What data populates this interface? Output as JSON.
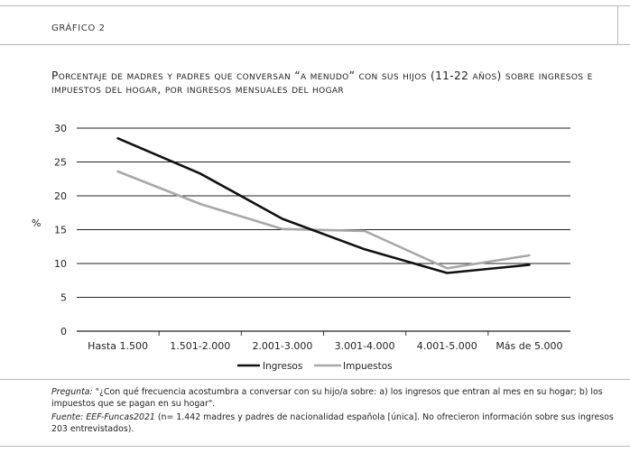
{
  "figure_label": "GRÁFICO 2",
  "title": "Porcentaje de madres y padres que conversan “a menudo” con sus hijos (11-22 años) sobre ingresos e impuestos del hogar, por ingresos mensuales del hogar",
  "chart_data": {
    "type": "line",
    "title": "Porcentaje de madres y padres que conversan “a menudo” con sus hijos (11-22 años) sobre ingresos e impuestos del hogar, por ingresos mensuales del hogar",
    "ylabel": "%",
    "xlabel": "",
    "ylim": [
      0,
      30
    ],
    "yticks": [
      "0",
      "5",
      "10",
      "15",
      "20",
      "25",
      "30"
    ],
    "categories": [
      "Hasta 1.500",
      "1.501-2.000",
      "2.001-3.000",
      "3.001-4.000",
      "4.001-5.000",
      "Más de 5.000"
    ],
    "series": [
      {
        "name": "Ingresos",
        "color": "#111111",
        "values": [
          28.5,
          23.3,
          16.6,
          12.1,
          8.6,
          9.8
        ]
      },
      {
        "name": "Impuestos",
        "color": "#a8a8a8",
        "values": [
          23.6,
          18.8,
          15.1,
          14.8,
          9.3,
          11.2
        ]
      }
    ],
    "grid": "horizontal",
    "legend_position": "bottom"
  },
  "notes": {
    "question_label": "Pregunta:",
    "question_text": " \"¿Con qué frecuencia acostumbra a conversar con su hijo/a sobre: a) los ingresos que entran al mes en su hogar; b) los impuestos que se pagan en su hogar\".",
    "source_label": "Fuente: EEF-Funcas2021",
    "source_text": " (n= 1.442 madres y padres de nacionalidad española [única]. No ofrecieron información sobre sus ingresos 203 entrevistados)."
  }
}
